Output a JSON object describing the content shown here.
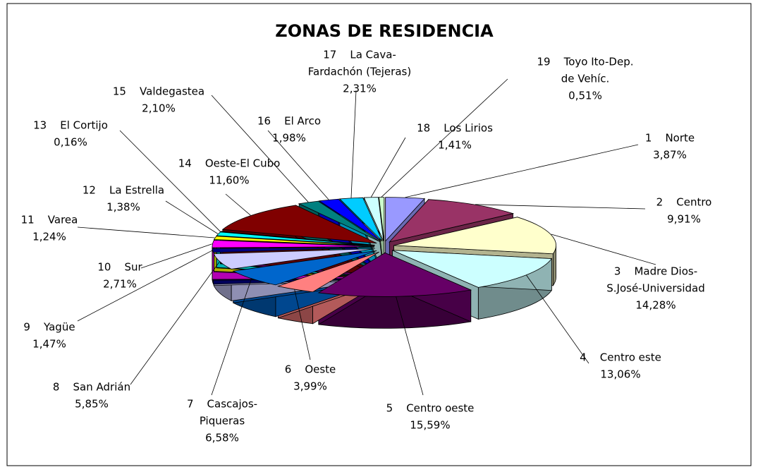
{
  "chart_data": {
    "type": "pie3d",
    "title": "ZONAS DE RESIDENCIA",
    "categories": [
      [
        "1    Norte"
      ],
      [
        "2    Centro"
      ],
      [
        "3    Madre Dios-",
        "S.José-Universidad"
      ],
      [
        "4    Centro este"
      ],
      [
        "5    Centro oeste"
      ],
      [
        "6    Oeste"
      ],
      [
        "7    Cascajos-",
        "Piqueras"
      ],
      [
        "8    San Adrián"
      ],
      [
        "9    Yagüe"
      ],
      [
        "10    Sur"
      ],
      [
        "11    Varea"
      ],
      [
        "12    La Estrella"
      ],
      [
        "13    El Cortijo"
      ],
      [
        "14    Oeste-El Cubo"
      ],
      [
        "15    Valdegastea"
      ],
      [
        "16    El Arco"
      ],
      [
        "17    La Cava-",
        "Fardachón (Tejeras)"
      ],
      [
        "18    Los Lirios"
      ],
      [
        "19    Toyo Ito-Dep.",
        "de Vehíc."
      ]
    ],
    "values": [
      3.87,
      9.91,
      14.28,
      13.06,
      15.59,
      3.99,
      6.58,
      5.85,
      1.47,
      2.71,
      1.24,
      1.38,
      0.16,
      11.6,
      2.1,
      1.98,
      2.31,
      1.41,
      0.51
    ],
    "value_labels": [
      "3,87%",
      "9,91%",
      "14,28%",
      "13,06%",
      "15,59%",
      "3,99%",
      "6,58%",
      "5,85%",
      "1,47%",
      "2,71%",
      "1,24%",
      "1,38%",
      "0,16%",
      "11,60%",
      "2,10%",
      "1,98%",
      "2,31%",
      "1,41%",
      "0,51%"
    ],
    "colors": [
      "#9999ff",
      "#993366",
      "#ffffcc",
      "#ccffff",
      "#660066",
      "#ff8080",
      "#0066cc",
      "#ccccff",
      "#000080",
      "#ff00ff",
      "#ffff00",
      "#00ffff",
      "#800080",
      "#800000",
      "#008080",
      "#0000ff",
      "#00ccff",
      "#ccffff",
      "#ccffcc"
    ]
  }
}
